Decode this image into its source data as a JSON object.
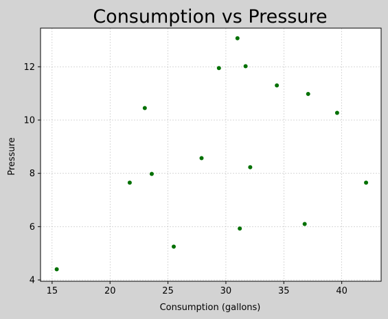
{
  "chart_data": {
    "type": "scatter",
    "title": "Consumption vs Pressure",
    "xlabel": "Consumption (gallons)",
    "ylabel": "Pressure",
    "xlim": [
      14.0,
      43.4
    ],
    "ylim": [
      3.95,
      13.45
    ],
    "xticks": [
      15,
      20,
      25,
      30,
      35,
      40
    ],
    "yticks": [
      4,
      6,
      8,
      10,
      12
    ],
    "grid": true,
    "color": "#007000",
    "series": [
      {
        "x": [
          15.4,
          21.7,
          23.0,
          23.6,
          25.5,
          27.9,
          29.4,
          31.0,
          31.2,
          31.7,
          32.1,
          34.4,
          36.8,
          37.1,
          39.6,
          42.1
        ],
        "y": [
          4.4,
          7.65,
          10.45,
          7.98,
          5.25,
          8.57,
          11.95,
          13.07,
          5.93,
          12.02,
          8.23,
          11.3,
          6.1,
          10.98,
          10.27,
          7.65
        ]
      }
    ]
  }
}
